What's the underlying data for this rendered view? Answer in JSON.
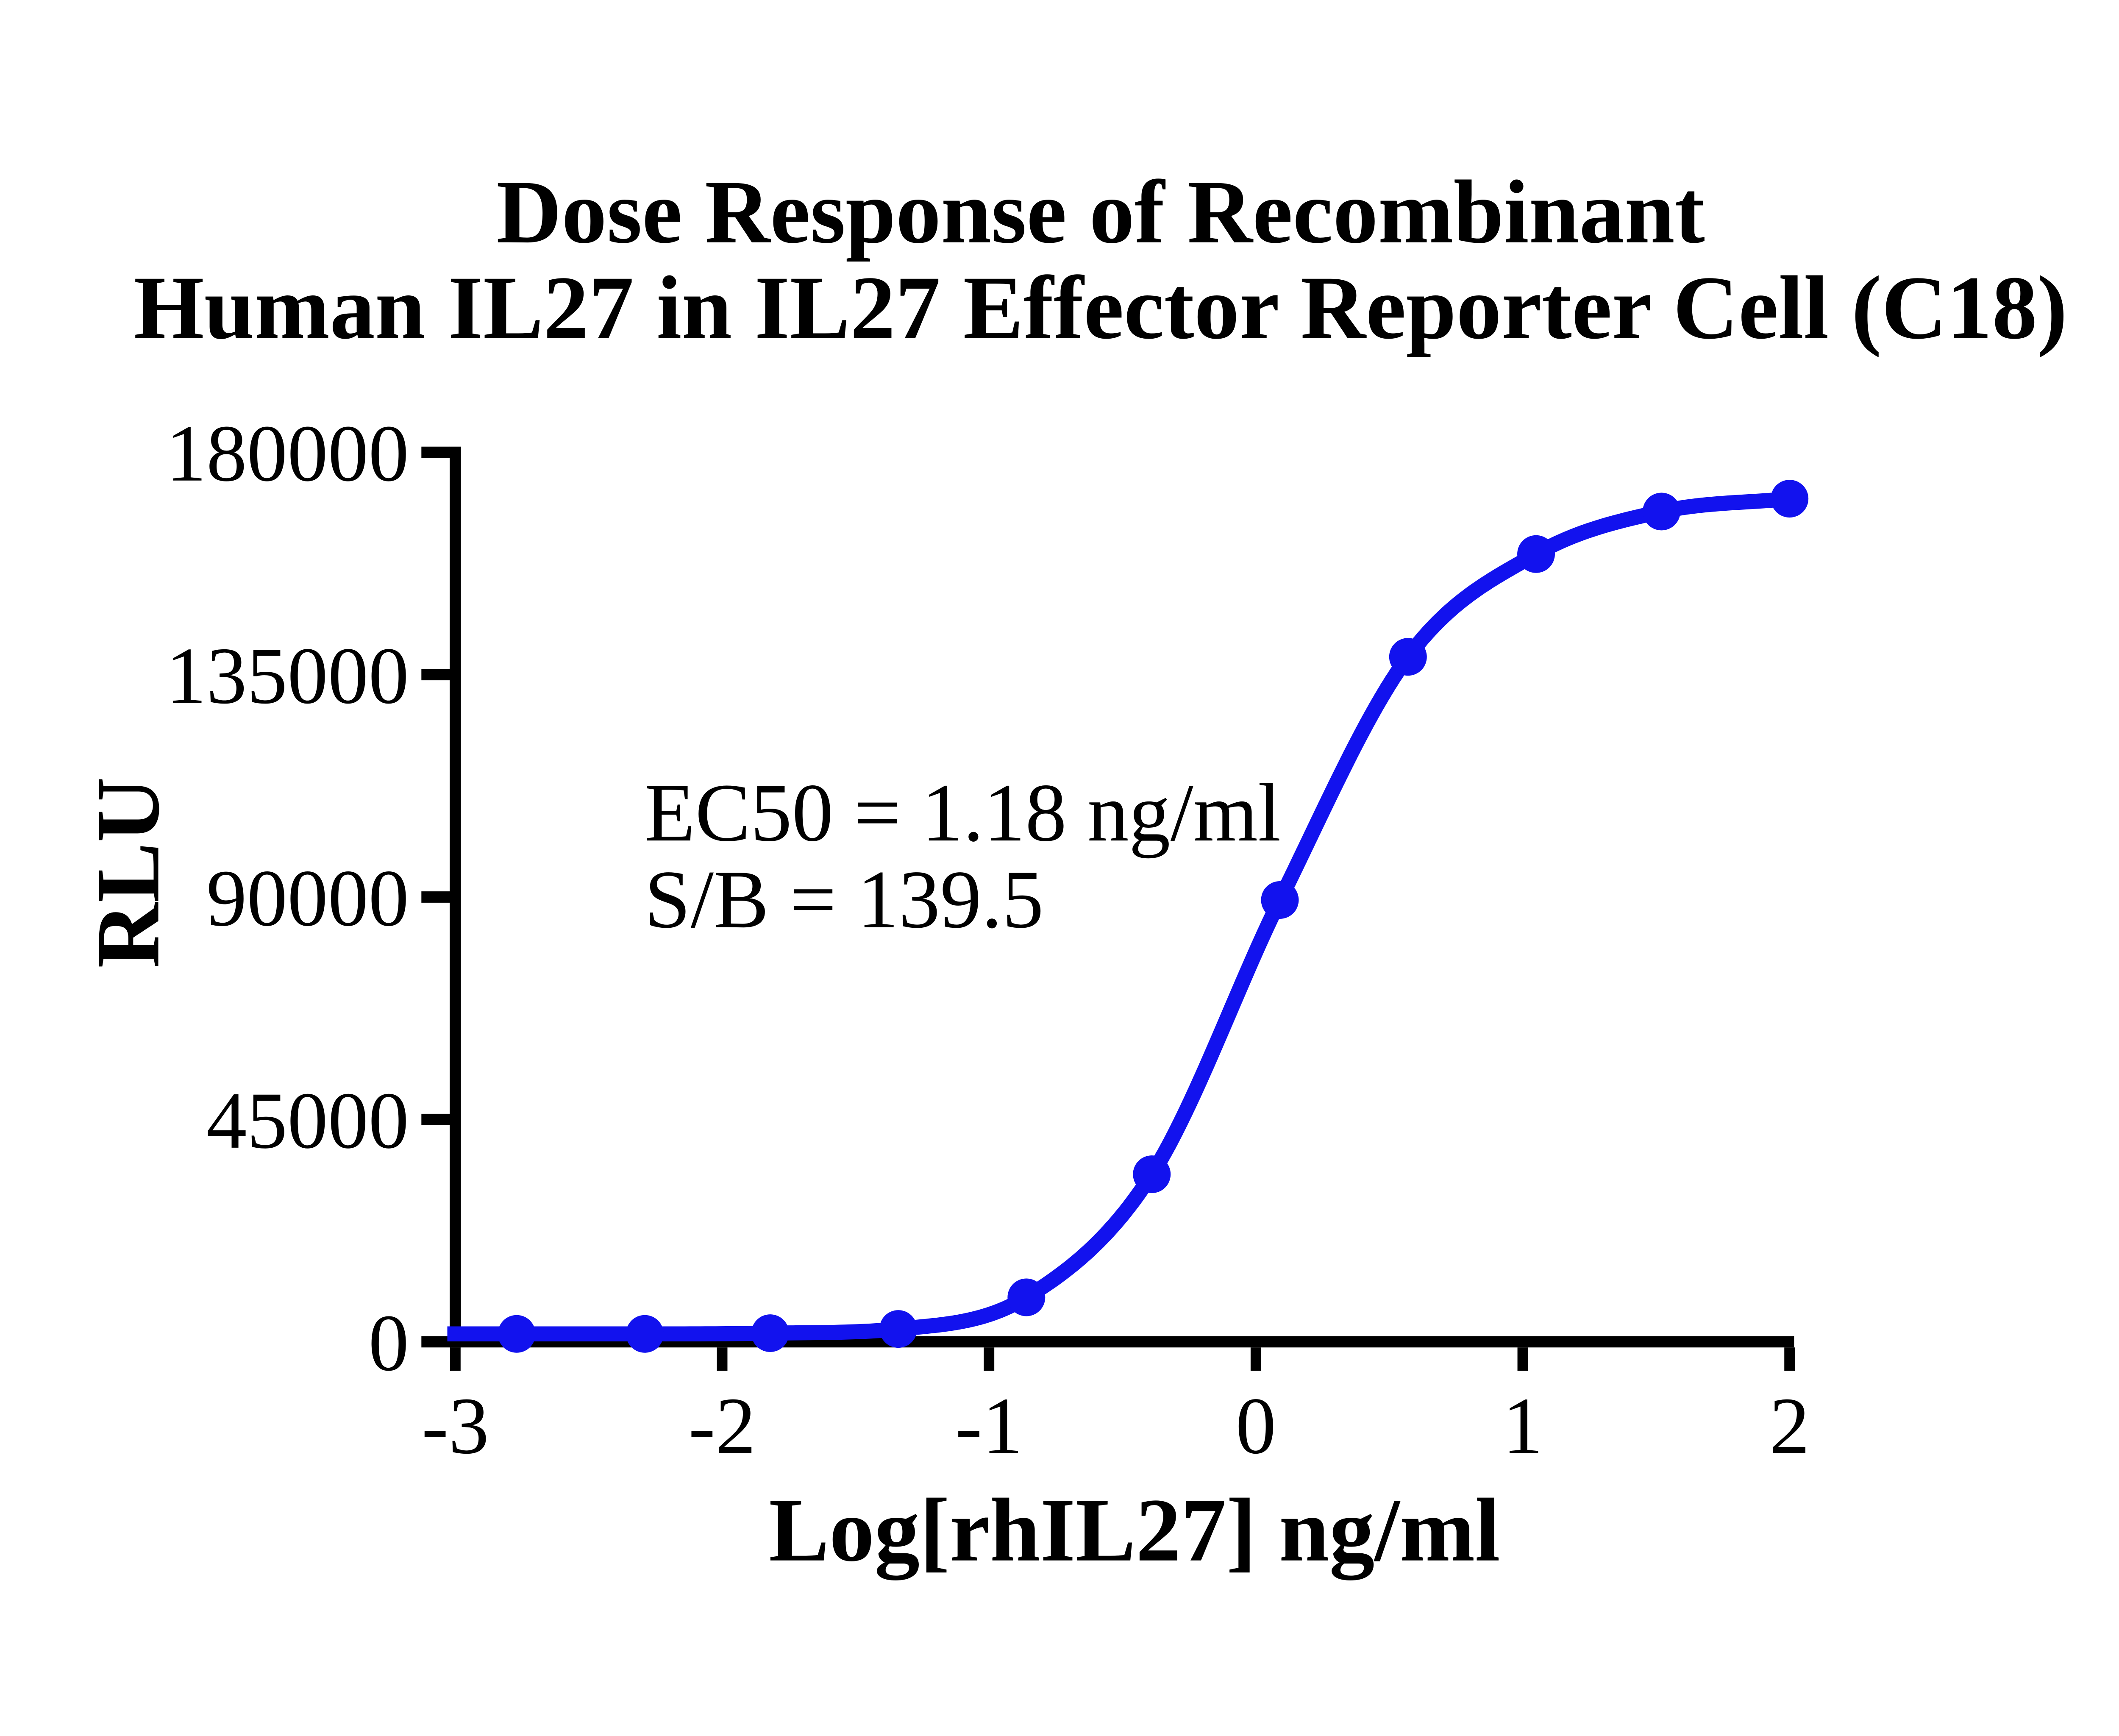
{
  "title": {
    "line1": "Dose Response of Recombinant",
    "line2": "Human IL27 in IL27 Effector Reporter Cell (C18)"
  },
  "annotation": {
    "line1": "EC50 = 1.18 ng/ml",
    "line2": "S/B = 139.5"
  },
  "colors": {
    "curve": "#1212ee",
    "axis": "#000000",
    "background": "#ffffff",
    "text": "#000000"
  },
  "chart_data": {
    "type": "line",
    "title": "Dose Response of Recombinant Human IL27 in IL27 Effector Reporter Cell (C18)",
    "xlabel": "Log[rhIL27] ng/ml",
    "ylabel": "RLU",
    "xlim": [
      -3,
      2.02
    ],
    "ylim": [
      0,
      180000
    ],
    "x_ticks": [
      -3,
      -2,
      -1,
      0,
      1,
      2
    ],
    "y_ticks": [
      0,
      45000,
      90000,
      135000,
      180000
    ],
    "grid": false,
    "legend": "none",
    "series": [
      {
        "name": "rhIL27",
        "marker": "circle",
        "x": [
          -2.77,
          -2.29,
          -1.82,
          -1.34,
          -0.86,
          -0.39,
          0.09,
          0.57,
          1.05,
          1.52,
          2.0
        ],
        "y": [
          1600,
          1600,
          1750,
          2600,
          9000,
          33900,
          89400,
          138600,
          159400,
          168000,
          170600
        ]
      }
    ],
    "annotations": [
      "EC50 = 1.18 ng/ml",
      "S/B = 139.5"
    ],
    "ec50_ng_ml": 1.18,
    "signal_to_background": 139.5
  }
}
